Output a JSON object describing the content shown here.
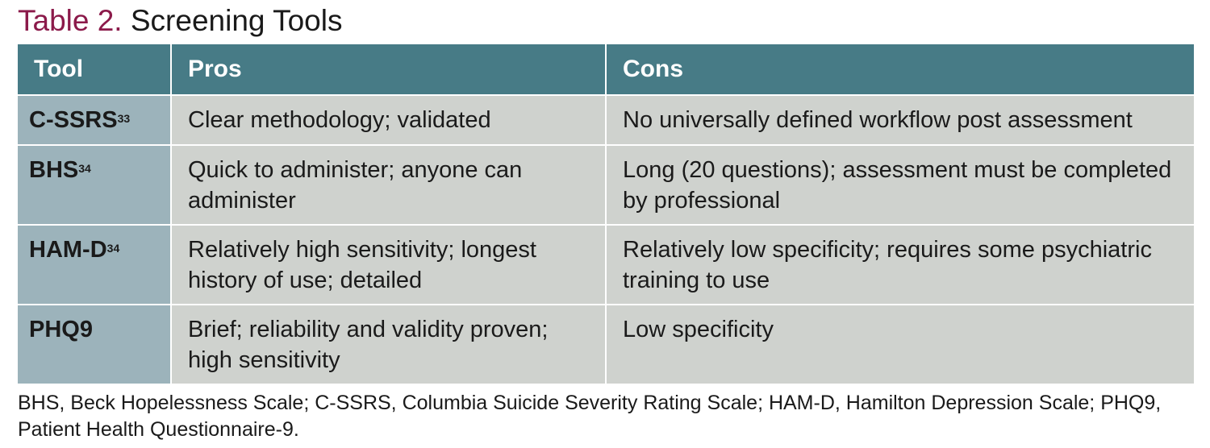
{
  "title": {
    "label": "Table 2.",
    "text": "Screening Tools"
  },
  "table": {
    "headers": [
      "Tool",
      "Pros",
      "Cons"
    ],
    "rows": [
      {
        "tool": "C-SSRS",
        "ref": "33",
        "pros": "Clear methodology; validated",
        "cons": "No universally defined workflow post assessment"
      },
      {
        "tool": "BHS",
        "ref": "34",
        "pros": "Quick to administer; anyone can administer",
        "cons": "Long (20 questions); assessment must be completed by professional"
      },
      {
        "tool": "HAM-D",
        "ref": "34",
        "pros": "Relatively high sensitivity; longest history of use; detailed",
        "cons": "Relatively low specificity; requires some psychiatric training to use"
      },
      {
        "tool": "PHQ9",
        "ref": "",
        "pros": "Brief; reliability and validity proven; high sensitivity",
        "cons": "Low specificity"
      }
    ]
  },
  "footnote": "BHS, Beck Hopelessness Scale; C-SSRS, Columbia Suicide Severity Rating Scale; HAM-D, Hamilton Depression Scale; PHQ9, Patient Health Questionnaire-9.",
  "colors": {
    "header_bg": "#477b86",
    "tool_col_bg": "#9cb3bb",
    "cell_bg": "#cfd2ce",
    "title_label": "#8b1a4a"
  }
}
